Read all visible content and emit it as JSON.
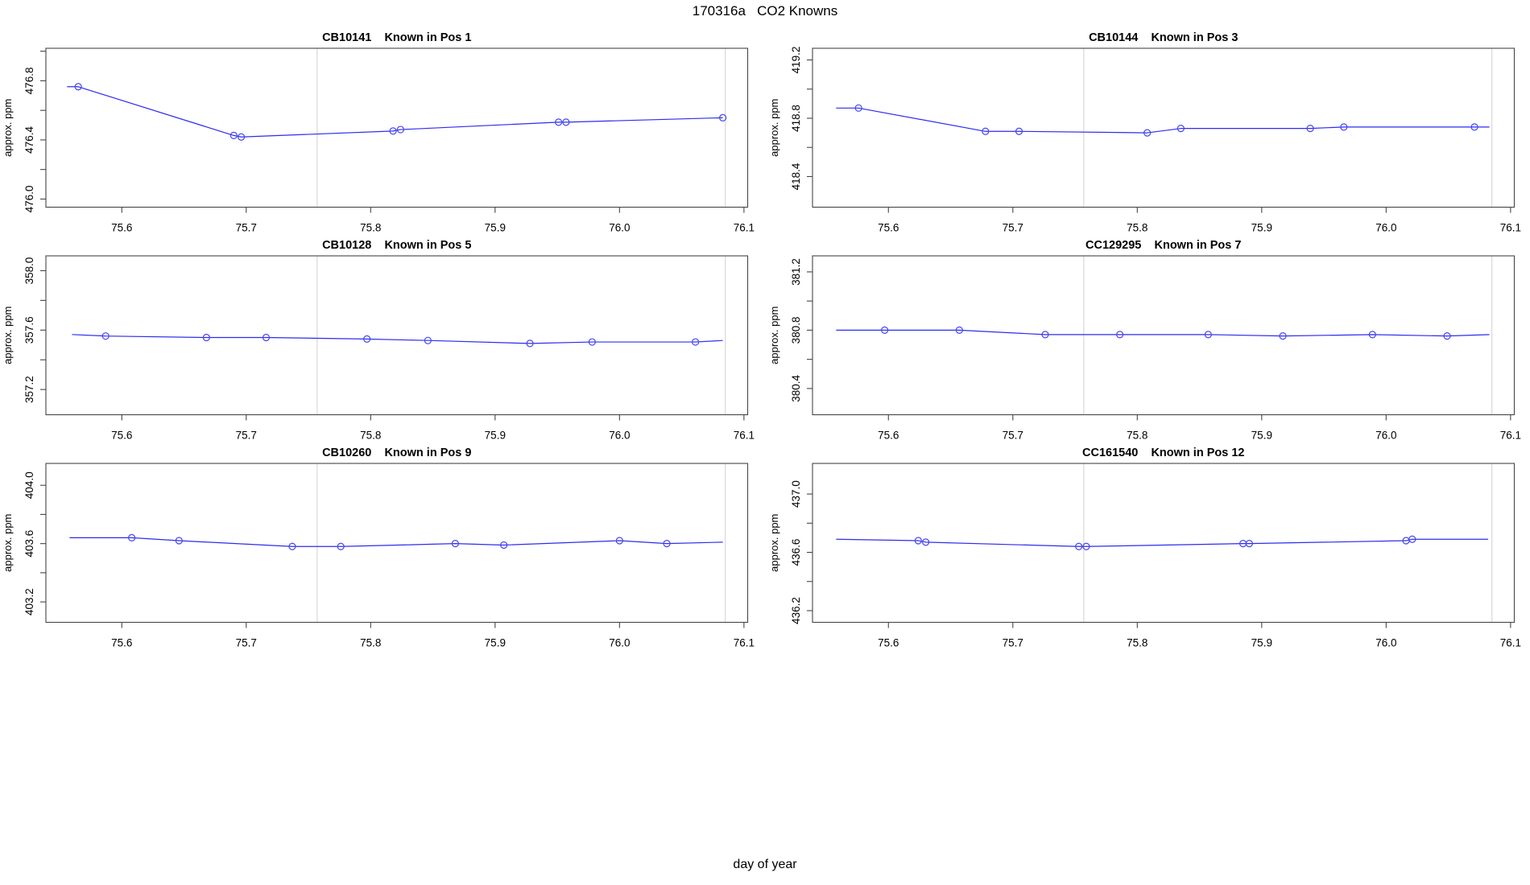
{
  "figure": {
    "title": "170316a   CO2 Knowns",
    "xlabel": "day of year",
    "ylabel": "approx. ppm",
    "line_color": "#2c2cf0",
    "marker_color": "#4444f2",
    "ref_line_color": "#d8d8d8",
    "axis_color": "#454545"
  },
  "chart_data": {
    "type": "line",
    "title": "170316a   CO2 Knowns",
    "xlabel": "day of year",
    "ylabel": "approx. ppm",
    "legend": "none",
    "grid": "off",
    "xlim": [
      75.539,
      76.103
    ],
    "x_ticks": [
      75.6,
      75.7,
      75.8,
      75.9,
      76.0,
      76.1
    ],
    "x_tick_labels": [
      "75.6",
      "75.7",
      "75.8",
      "75.9",
      "76.0",
      "76.1"
    ],
    "ref_lines_x": [
      75.757,
      76.085
    ],
    "plots": [
      {
        "id": "CB10141",
        "position_label": "Known in Pos 1",
        "ylim": [
          475.945,
          477.02
        ],
        "y_ticks": [
          476.0,
          476.2,
          476.4,
          476.6,
          476.8,
          477.0
        ],
        "y_tick_labels": [
          "476.0",
          "",
          "476.4",
          "",
          "476.8",
          ""
        ],
        "x": [
          75.556,
          75.565,
          75.69,
          75.696,
          75.818,
          75.824,
          75.951,
          75.957,
          76.083
        ],
        "y": [
          476.76,
          476.76,
          476.43,
          476.42,
          476.46,
          476.47,
          476.52,
          476.52,
          476.55
        ],
        "marker": [
          false,
          true,
          true,
          true,
          true,
          true,
          true,
          true,
          true
        ]
      },
      {
        "id": "CB10144",
        "position_label": "Known in Pos 3",
        "ylim": [
          418.19,
          419.28
        ],
        "y_ticks": [
          418.4,
          418.6,
          418.8,
          419.0,
          419.2
        ],
        "y_tick_labels": [
          "418.4",
          "",
          "418.8",
          "",
          "419.2"
        ],
        "x": [
          75.558,
          75.576,
          75.678,
          75.705,
          75.808,
          75.835,
          75.939,
          75.966,
          76.071,
          76.083
        ],
        "y": [
          418.87,
          418.87,
          418.71,
          418.71,
          418.7,
          418.73,
          418.73,
          418.74,
          418.74,
          418.74
        ],
        "marker": [
          false,
          true,
          true,
          true,
          true,
          true,
          true,
          true,
          true,
          false
        ]
      },
      {
        "id": "CB10128",
        "position_label": "Known in Pos 5",
        "ylim": [
          357.03,
          358.1
        ],
        "y_ticks": [
          357.2,
          357.4,
          357.6,
          357.8,
          358.0
        ],
        "y_tick_labels": [
          "357.2",
          "",
          "357.6",
          "",
          "358.0"
        ],
        "x": [
          75.56,
          75.587,
          75.668,
          75.716,
          75.797,
          75.846,
          75.928,
          75.978,
          76.061,
          76.083
        ],
        "y": [
          357.57,
          357.56,
          357.55,
          357.55,
          357.54,
          357.53,
          357.51,
          357.52,
          357.52,
          357.53
        ],
        "marker": [
          false,
          true,
          true,
          true,
          true,
          true,
          true,
          true,
          true,
          false
        ]
      },
      {
        "id": "CC129295",
        "position_label": "Known in Pos 7",
        "ylim": [
          380.22,
          381.31
        ],
        "y_ticks": [
          380.4,
          380.6,
          380.8,
          381.0,
          381.2
        ],
        "y_tick_labels": [
          "380.4",
          "",
          "380.8",
          "",
          "381.2"
        ],
        "x": [
          75.558,
          75.597,
          75.657,
          75.726,
          75.786,
          75.857,
          75.917,
          75.989,
          76.049,
          76.083
        ],
        "y": [
          380.8,
          380.8,
          380.8,
          380.77,
          380.77,
          380.77,
          380.76,
          380.77,
          380.76,
          380.77
        ],
        "marker": [
          false,
          true,
          true,
          true,
          true,
          true,
          true,
          true,
          true,
          false
        ]
      },
      {
        "id": "CB10260",
        "position_label": "Known in Pos 9",
        "ylim": [
          403.06,
          404.15
        ],
        "y_ticks": [
          403.2,
          403.4,
          403.6,
          403.8,
          404.0
        ],
        "y_tick_labels": [
          "403.2",
          "",
          "403.6",
          "",
          "404.0"
        ],
        "x": [
          75.558,
          75.608,
          75.646,
          75.737,
          75.776,
          75.868,
          75.907,
          76.0,
          76.038,
          76.083
        ],
        "y": [
          403.64,
          403.64,
          403.62,
          403.58,
          403.58,
          403.6,
          403.59,
          403.62,
          403.6,
          403.61
        ],
        "marker": [
          false,
          true,
          true,
          true,
          true,
          true,
          true,
          true,
          true,
          false
        ]
      },
      {
        "id": "CC161540",
        "position_label": "Known in Pos 12",
        "ylim": [
          436.12,
          437.21
        ],
        "y_ticks": [
          436.2,
          436.4,
          436.6,
          436.8,
          437.0
        ],
        "y_tick_labels": [
          "436.2",
          "",
          "436.6",
          "",
          "437.0"
        ],
        "x": [
          75.558,
          75.624,
          75.63,
          75.753,
          75.759,
          75.885,
          75.89,
          76.016,
          76.021,
          76.082
        ],
        "y": [
          436.69,
          436.68,
          436.67,
          436.64,
          436.64,
          436.66,
          436.66,
          436.68,
          436.69,
          436.69
        ],
        "marker": [
          false,
          true,
          true,
          true,
          true,
          true,
          true,
          true,
          true,
          false
        ]
      }
    ]
  }
}
